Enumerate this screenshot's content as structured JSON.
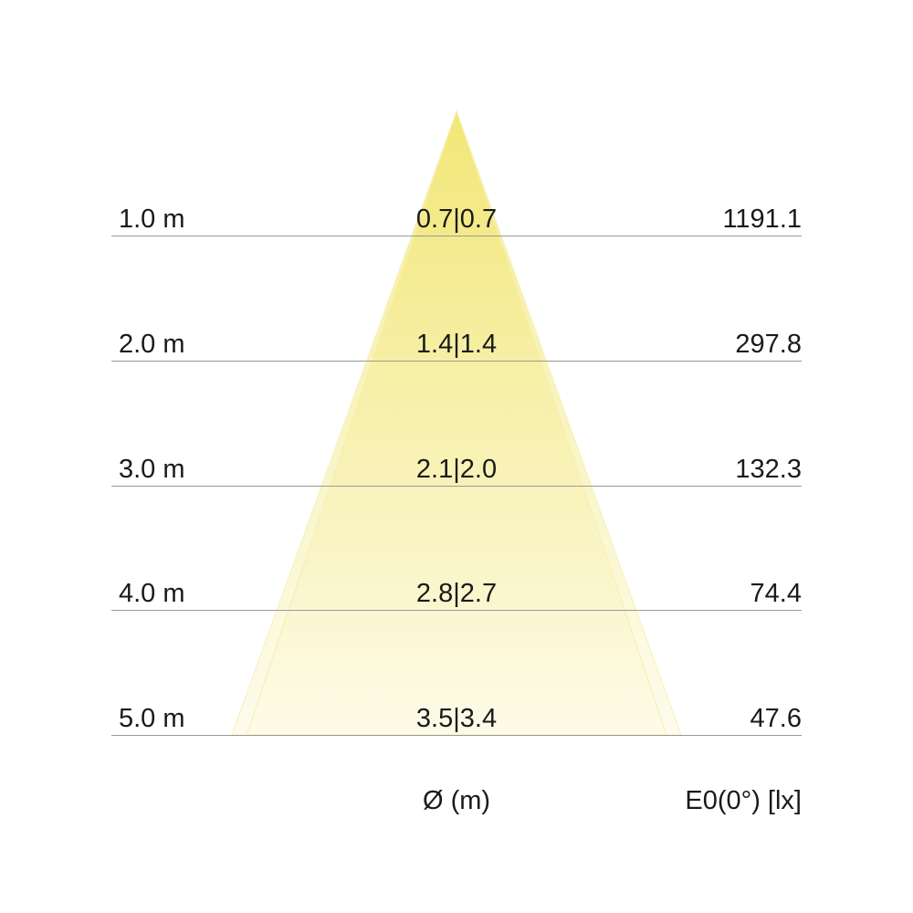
{
  "rows": [
    {
      "distance": "1.0 m",
      "diameter": "0.7|0.7",
      "illuminance": "1191.1"
    },
    {
      "distance": "2.0 m",
      "diameter": "1.4|1.4",
      "illuminance": "297.8"
    },
    {
      "distance": "3.0 m",
      "diameter": "2.1|2.0",
      "illuminance": "132.3"
    },
    {
      "distance": "4.0 m",
      "diameter": "2.8|2.7",
      "illuminance": "74.4"
    },
    {
      "distance": "5.0 m",
      "diameter": "3.5|3.4",
      "illuminance": "47.6"
    }
  ],
  "footer": {
    "diameter_label": "Ø (m)",
    "illuminance_label": "E0(0°) [lx]"
  },
  "colors": {
    "beam_top": "#f2e56a",
    "beam_bottom": "#fdfbe6",
    "line": "#9a9a9a"
  }
}
